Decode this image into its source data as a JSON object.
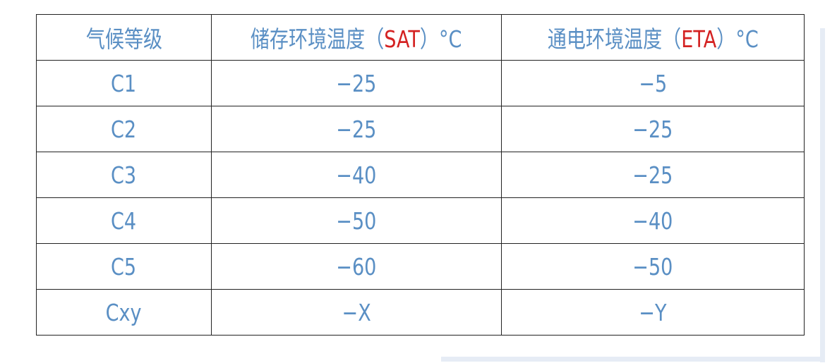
{
  "table": {
    "headers": [
      {
        "pre": "气候等级",
        "code": "",
        "post": ""
      },
      {
        "pre": "储存环境温度（",
        "code": "SAT",
        "post": "）°C"
      },
      {
        "pre": "通电环境温度（",
        "code": "ETA",
        "post": "）°C"
      }
    ],
    "rows": [
      [
        "C1",
        "−25",
        "−5"
      ],
      [
        "C2",
        "−25",
        "−25"
      ],
      [
        "C3",
        "−40",
        "−25"
      ],
      [
        "C4",
        "−50",
        "−40"
      ],
      [
        "C5",
        "−60",
        "−50"
      ],
      [
        "Cxy",
        "−X",
        "−Y"
      ]
    ]
  },
  "colors": {
    "text": "#5a8fc4",
    "highlight": "#d42222",
    "frame": "#e6ecf5"
  }
}
